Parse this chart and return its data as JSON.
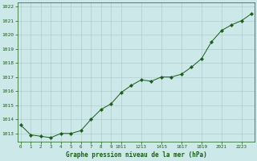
{
  "hours": [
    0,
    1,
    2,
    3,
    4,
    5,
    6,
    7,
    8,
    9,
    10,
    11,
    12,
    13,
    14,
    15,
    16,
    17,
    18,
    19,
    20,
    21,
    22,
    23
  ],
  "pressure": [
    1013.6,
    1012.9,
    1012.8,
    1012.7,
    1013.0,
    1013.0,
    1013.2,
    1014.0,
    1014.7,
    1015.1,
    1015.9,
    1016.4,
    1016.8,
    1016.7,
    1017.0,
    1017.0,
    1017.2,
    1017.7,
    1018.3,
    1019.5,
    1020.3,
    1020.7,
    1021.0,
    1021.5
  ],
  "line_color": "#1a5c1a",
  "marker_color": "#1a5c1a",
  "bg_color": "#cce8e8",
  "grid_color": "#b0cccc",
  "xlabel": "Graphe pression niveau de la mer (hPa)",
  "xlabel_color": "#1a5c1a",
  "ytick_min": 1013,
  "ytick_max": 1022,
  "ylim_min": 1012.4,
  "ylim_max": 1022.3,
  "xlim_min": -0.3,
  "xlim_max": 23.3,
  "tick_color": "#1a5c1a",
  "spine_color": "#1a5c1a",
  "xtick_labels": [
    "0",
    "1",
    "2",
    "3",
    "4",
    "5",
    "6",
    "7",
    "8",
    "9",
    "1011",
    "1213",
    "1415",
    "1617",
    "1819",
    "2021",
    "2223"
  ],
  "xtick_positions": [
    0,
    1,
    2,
    3,
    4,
    5,
    6,
    7,
    8,
    9,
    10,
    12,
    14,
    16,
    18,
    20,
    22
  ]
}
